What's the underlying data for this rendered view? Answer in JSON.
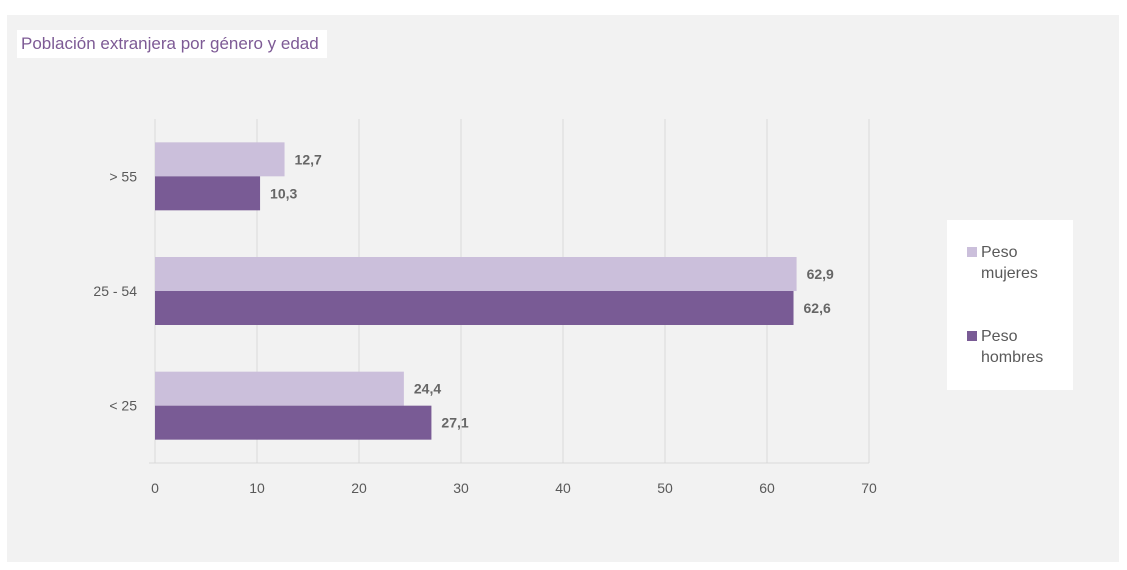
{
  "colors": {
    "mujeres": "#cbbfdb",
    "hombres": "#795b95",
    "title": "#7d5a95",
    "grid": "#d9d9d9",
    "axis_text": "#595959",
    "data_label": "#666666"
  },
  "chart_data": {
    "type": "bar",
    "orientation": "horizontal",
    "title": "Población extranjera por género y edad",
    "categories": [
      "> 55",
      "25 - 54",
      "<  25"
    ],
    "series": [
      {
        "name": "Peso mujeres",
        "values": [
          12.7,
          62.9,
          24.4
        ],
        "labels": [
          "12,7",
          "62,9",
          "24,4"
        ]
      },
      {
        "name": "Peso hombres",
        "values": [
          10.3,
          62.6,
          27.1
        ],
        "labels": [
          "10,3",
          "62,6",
          "27,1"
        ]
      }
    ],
    "xlim": [
      0,
      70
    ],
    "xticks": [
      0,
      10,
      20,
      30,
      40,
      50,
      60,
      70
    ],
    "xtick_labels": [
      "0",
      "10",
      "20",
      "30",
      "40",
      "50",
      "60",
      "70"
    ],
    "grid": true,
    "legend_position": "right"
  }
}
